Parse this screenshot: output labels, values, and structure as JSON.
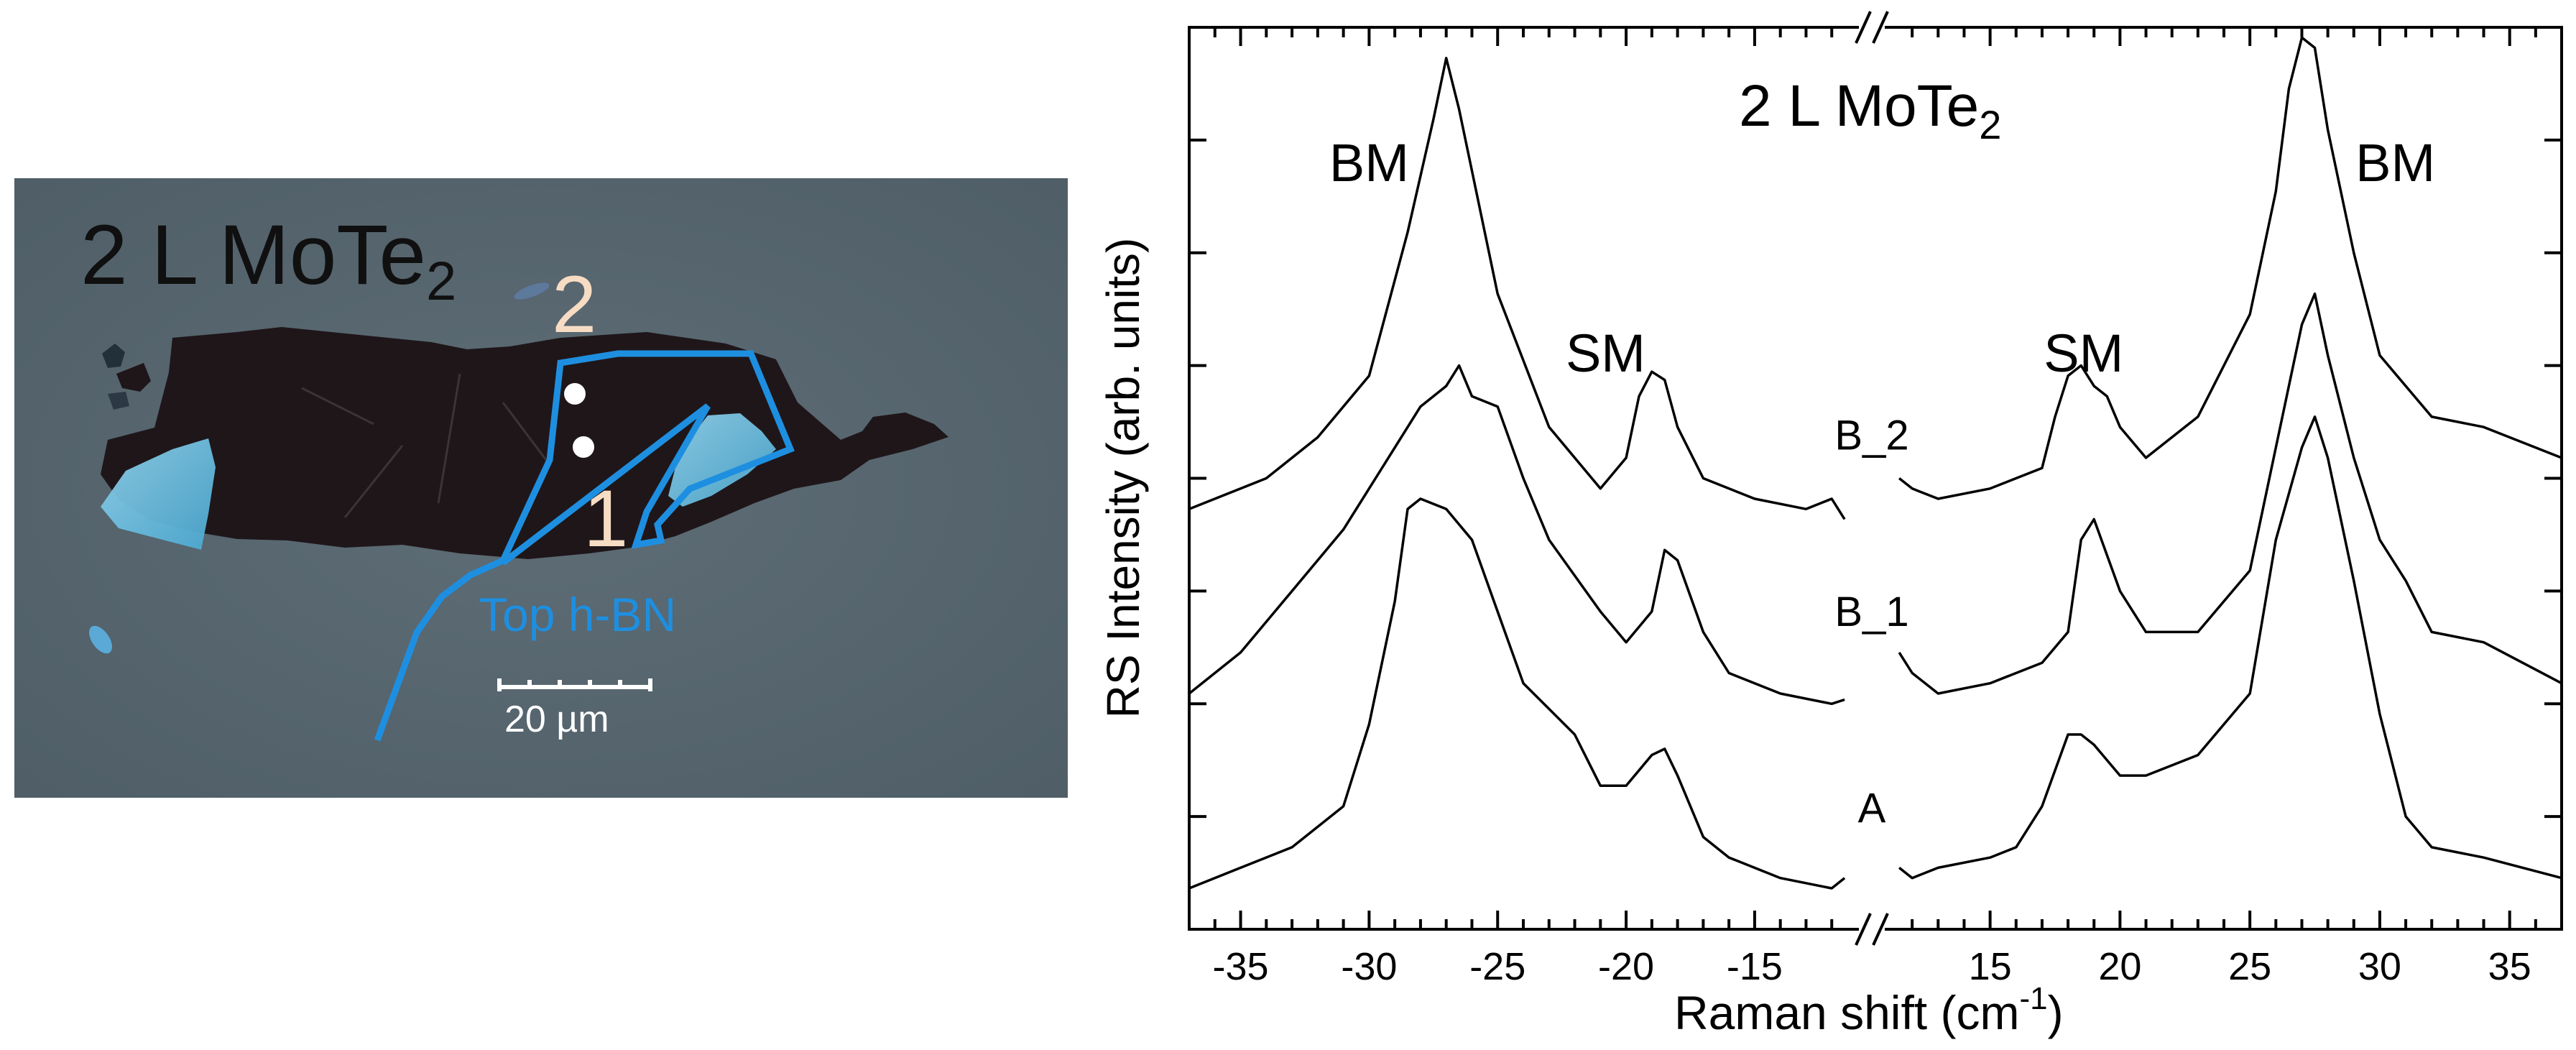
{
  "micrograph": {
    "title": "2 L MoTe",
    "title_sub": "2",
    "point_labels": [
      "2",
      "1"
    ],
    "hbn_label": "Top h-BN",
    "scalebar_label": "20 µm",
    "colors": {
      "background": "#56656e",
      "flake": "#1f1619",
      "outline": "#1e8fe0",
      "point_label": "#f7dcc4"
    }
  },
  "chart_data": {
    "type": "line",
    "title": "2 L MoTe",
    "title_sub": "2",
    "xlabel": "Raman shift (cm",
    "xlabel_sup": "-1",
    "xlabel_end": ")",
    "ylabel": "RS Intensity (arb. units)",
    "broken_axis": true,
    "x_ranges": [
      [
        -37,
        -11
      ],
      [
        11,
        37
      ]
    ],
    "xticks_left": [
      -35,
      -30,
      -25,
      -20,
      -15
    ],
    "xticks_right": [
      15,
      20,
      25,
      30,
      35
    ],
    "ylim": [
      0,
      4.4
    ],
    "grid": false,
    "annotations": [
      "BM",
      "SM",
      "SM",
      "BM"
    ],
    "annotation_x": [
      -30,
      -20.8,
      18.6,
      30.6
    ],
    "annotation_y": [
      3.65,
      2.72,
      2.72,
      3.65
    ],
    "series": [
      {
        "name": "B_2",
        "label_y": 2.34,
        "left": {
          "x": [
            -37,
            -34,
            -32,
            -30,
            -28.5,
            -27.5,
            -27,
            -26.5,
            -26,
            -25,
            -23,
            -21,
            -20,
            -19.5,
            -19,
            -18.5,
            -18,
            -17,
            -15,
            -13,
            -12,
            -11.5
          ],
          "y": [
            2.05,
            2.2,
            2.4,
            2.7,
            3.4,
            3.95,
            4.25,
            4.0,
            3.7,
            3.1,
            2.45,
            2.15,
            2.3,
            2.6,
            2.72,
            2.68,
            2.45,
            2.2,
            2.1,
            2.05,
            2.1,
            2.0
          ]
        },
        "right": {
          "x": [
            11.5,
            12,
            13,
            15,
            17,
            17.5,
            18,
            18.5,
            19,
            19.5,
            20,
            21,
            23,
            25,
            26,
            26.5,
            27,
            27.5,
            28,
            29,
            30,
            32,
            34,
            37
          ],
          "y": [
            2.2,
            2.15,
            2.1,
            2.15,
            2.25,
            2.5,
            2.7,
            2.75,
            2.65,
            2.6,
            2.45,
            2.3,
            2.5,
            3.0,
            3.6,
            4.1,
            4.35,
            4.3,
            3.9,
            3.3,
            2.8,
            2.5,
            2.45,
            2.3
          ]
        }
      },
      {
        "name": "B_1",
        "label_y": 1.48,
        "left": {
          "x": [
            -37,
            -35,
            -33,
            -31,
            -29,
            -28,
            -27,
            -26.5,
            -26,
            -25,
            -24,
            -23,
            -21,
            -20,
            -19,
            -18.5,
            -18,
            -17,
            -16,
            -14,
            -12,
            -11.5
          ],
          "y": [
            1.15,
            1.35,
            1.65,
            1.95,
            2.35,
            2.55,
            2.65,
            2.75,
            2.6,
            2.55,
            2.2,
            1.9,
            1.55,
            1.4,
            1.55,
            1.85,
            1.8,
            1.45,
            1.25,
            1.15,
            1.1,
            1.12
          ]
        },
        "right": {
          "x": [
            11.5,
            12,
            13,
            15,
            17,
            18,
            18.5,
            19,
            20,
            21,
            23,
            25,
            26,
            27,
            27.5,
            28,
            29,
            30,
            31,
            32,
            34,
            37
          ],
          "y": [
            1.35,
            1.25,
            1.15,
            1.2,
            1.3,
            1.45,
            1.9,
            2.0,
            1.65,
            1.45,
            1.45,
            1.75,
            2.35,
            2.95,
            3.1,
            2.8,
            2.3,
            1.9,
            1.7,
            1.45,
            1.4,
            1.2
          ]
        }
      },
      {
        "name": "A",
        "label_y": 0.52,
        "left": {
          "x": [
            -37,
            -35,
            -33,
            -31,
            -30,
            -29,
            -28.5,
            -28,
            -27,
            -26,
            -25,
            -24,
            -22,
            -21,
            -20,
            -19,
            -18.5,
            -18,
            -17,
            -16,
            -14,
            -12,
            -11.5
          ],
          "y": [
            0.2,
            0.3,
            0.4,
            0.6,
            1.0,
            1.6,
            2.05,
            2.1,
            2.05,
            1.9,
            1.55,
            1.2,
            0.95,
            0.7,
            0.7,
            0.85,
            0.88,
            0.75,
            0.45,
            0.35,
            0.25,
            0.2,
            0.25
          ]
        },
        "right": {
          "x": [
            11.5,
            12,
            13,
            15,
            16,
            17,
            18,
            18.5,
            19,
            20,
            21,
            23,
            25,
            26,
            27,
            27.5,
            28,
            29,
            30,
            31,
            32,
            34,
            37
          ],
          "y": [
            0.3,
            0.25,
            0.3,
            0.35,
            0.4,
            0.6,
            0.95,
            0.95,
            0.9,
            0.75,
            0.75,
            0.85,
            1.15,
            1.9,
            2.35,
            2.5,
            2.3,
            1.7,
            1.05,
            0.55,
            0.4,
            0.35,
            0.25
          ]
        }
      }
    ]
  }
}
